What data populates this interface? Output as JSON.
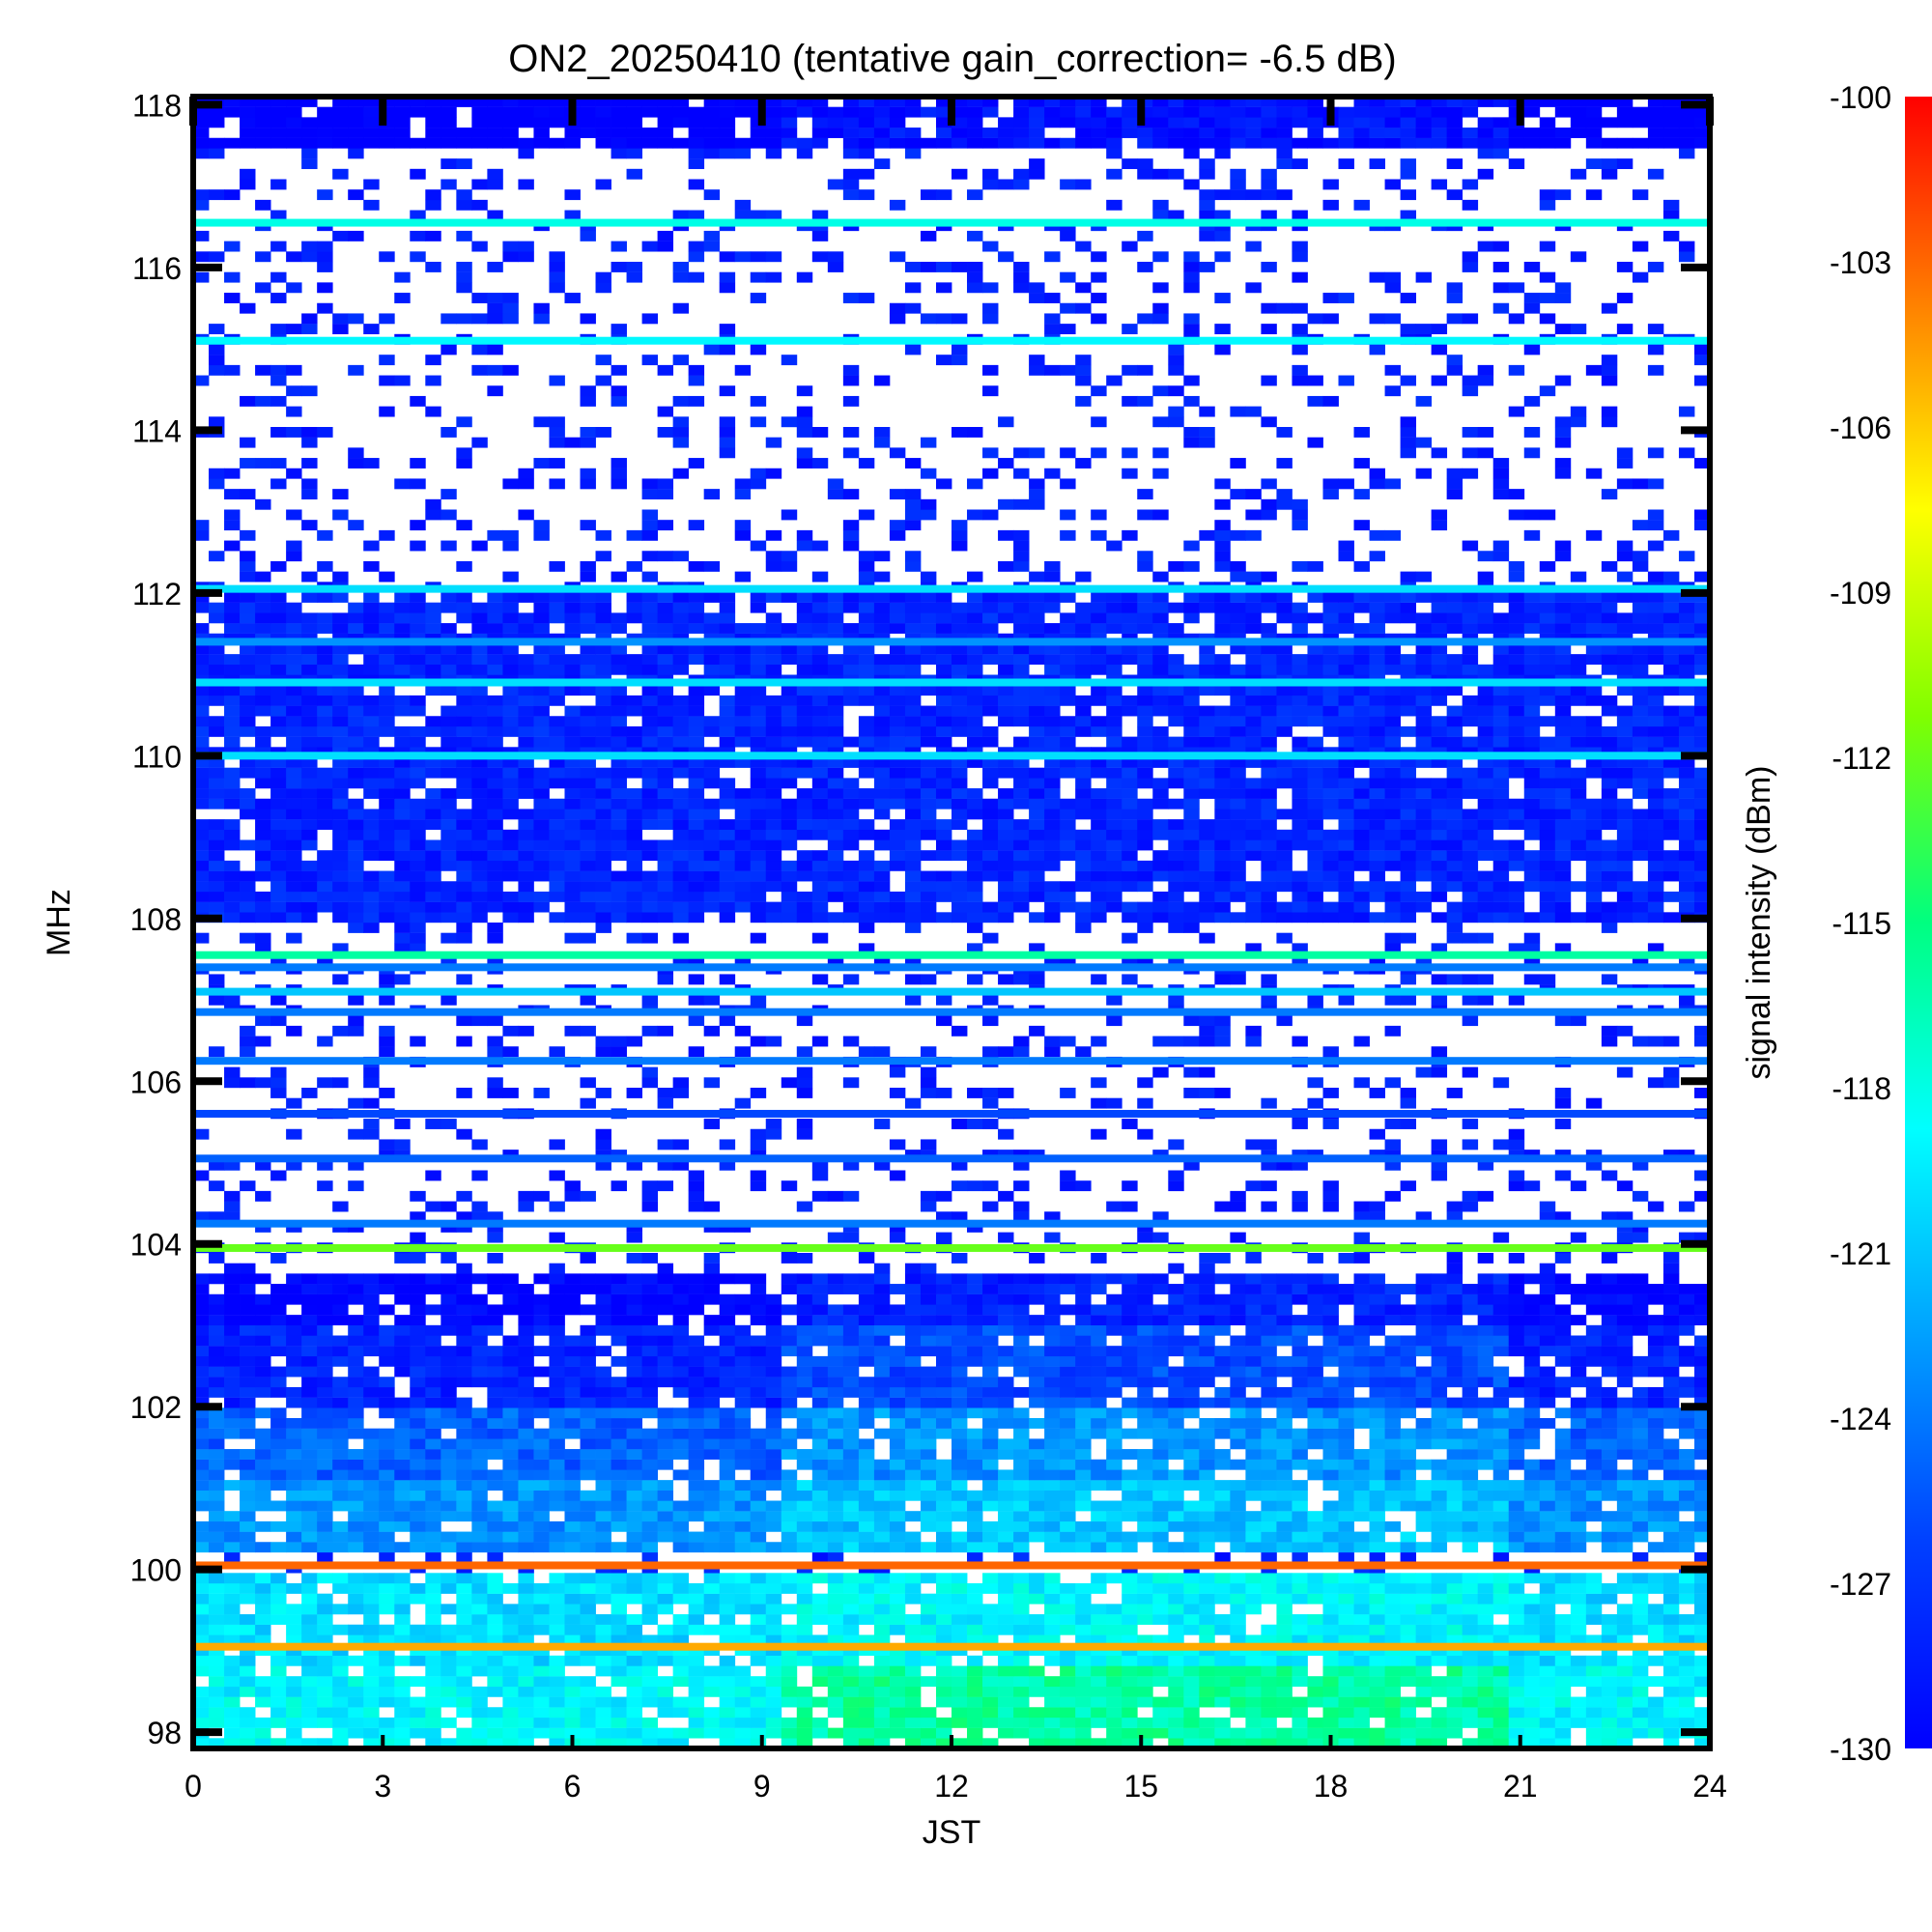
{
  "chart_data": {
    "type": "heatmap",
    "title": "ON2_20250410 (tentative gain_correction= -6.5 dB)",
    "xlabel": "JST",
    "ylabel": "MHz",
    "colorbar_label": "signal intensity (dBm)",
    "xlim": [
      0,
      24
    ],
    "ylim": [
      97.8,
      118.1
    ],
    "x_ticks": [
      "0",
      "3",
      "6",
      "9",
      "12",
      "15",
      "18",
      "21",
      "24"
    ],
    "y_ticks": [
      "98",
      "100",
      "102",
      "104",
      "106",
      "108",
      "110",
      "112",
      "114",
      "116",
      "118"
    ],
    "colorbar_range": [
      -130,
      -100
    ],
    "colorbar_ticks": [
      "-100",
      "-103",
      "-106",
      "-109",
      "-112",
      "-115",
      "-118",
      "-121",
      "-124",
      "-127",
      "-130"
    ],
    "colormap": "jet",
    "empty_color": "#ffffff",
    "gain_step_window_hours": [
      9.4,
      20.9
    ],
    "stations": [
      {
        "freq_mhz": 116.55,
        "dbm": -118
      },
      {
        "freq_mhz": 115.1,
        "dbm": -119
      },
      {
        "freq_mhz": 112.05,
        "dbm": -120
      },
      {
        "freq_mhz": 111.4,
        "dbm": -123
      },
      {
        "freq_mhz": 110.9,
        "dbm": -120
      },
      {
        "freq_mhz": 110.0,
        "dbm": -120
      },
      {
        "freq_mhz": 107.55,
        "dbm": -116
      },
      {
        "freq_mhz": 107.4,
        "dbm": -124
      },
      {
        "freq_mhz": 107.1,
        "dbm": -121
      },
      {
        "freq_mhz": 106.85,
        "dbm": -124
      },
      {
        "freq_mhz": 106.25,
        "dbm": -124
      },
      {
        "freq_mhz": 105.6,
        "dbm": -126
      },
      {
        "freq_mhz": 105.05,
        "dbm": -125
      },
      {
        "freq_mhz": 104.25,
        "dbm": -124
      },
      {
        "freq_mhz": 103.95,
        "dbm": -112
      },
      {
        "freq_mhz": 100.05,
        "dbm": -103
      },
      {
        "freq_mhz": 99.05,
        "dbm": -105
      }
    ],
    "bands": [
      {
        "freq_range_mhz": [
          97.8,
          98.8
        ],
        "dbm_outside": -119,
        "dbm_inside": -116
      },
      {
        "freq_range_mhz": [
          98.8,
          99.9
        ],
        "dbm_outside": -120,
        "dbm_inside": -119
      },
      {
        "freq_range_mhz": [
          100.2,
          101.1
        ],
        "dbm_outside": -123,
        "dbm_inside": -121
      },
      {
        "freq_range_mhz": [
          101.1,
          102.0
        ],
        "dbm_outside": -125,
        "dbm_inside": -123
      },
      {
        "freq_range_mhz": [
          102.0,
          103.0
        ],
        "dbm_outside": -128,
        "dbm_inside": -126
      },
      {
        "freq_range_mhz": [
          103.0,
          103.6
        ],
        "dbm_outside": -130,
        "dbm_inside": -128
      },
      {
        "freq_range_mhz": [
          108.0,
          112.0
        ],
        "dbm_outside": -128,
        "dbm_inside": -128
      },
      {
        "freq_range_mhz": [
          117.5,
          118.1
        ],
        "dbm_outside": -131,
        "dbm_inside": -129
      }
    ]
  }
}
